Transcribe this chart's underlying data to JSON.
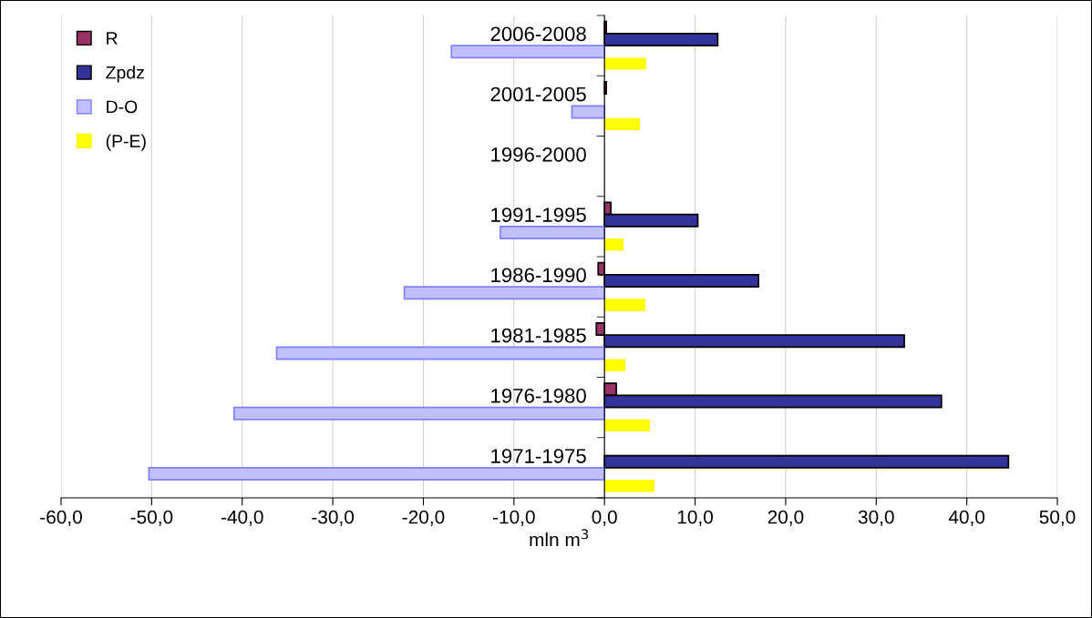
{
  "chart_data": {
    "type": "bar",
    "orientation": "horizontal",
    "xlabel": "mln m$^{3}$",
    "categories": [
      "2006-2008",
      "2001-2005",
      "1996-2000",
      "1991-1995",
      "1986-1990",
      "1981-1985",
      "1976-1980",
      "1971-1975"
    ],
    "series": [
      {
        "name": "R",
        "color": "#993366",
        "values": [
          0.2,
          0.2,
          null,
          0.7,
          -0.7,
          -0.9,
          1.3,
          null
        ]
      },
      {
        "name": "Zpdz",
        "color": "#333399",
        "values": [
          12.5,
          null,
          null,
          10.3,
          17.0,
          33.1,
          37.2,
          44.6
        ]
      },
      {
        "name": "D-O",
        "color": "#c0c0ff",
        "values": [
          -16.9,
          -3.6,
          null,
          -11.5,
          -22.1,
          -36.2,
          -40.9,
          -50.3
        ]
      },
      {
        "name": "(P-E)",
        "color": "#ffff00",
        "values": [
          4.6,
          3.9,
          null,
          2.1,
          4.5,
          2.3,
          5.0,
          5.5
        ]
      }
    ],
    "xlim": [
      -60,
      50
    ],
    "xticks": [
      {
        "value": -60,
        "label": "-60,0"
      },
      {
        "value": -50,
        "label": "-50,0"
      },
      {
        "value": -40,
        "label": "-40,0"
      },
      {
        "value": -30,
        "label": "-30,0"
      },
      {
        "value": -20,
        "label": "-20,0"
      },
      {
        "value": -10,
        "label": "-10,0"
      },
      {
        "value": 0,
        "label": "0,0"
      },
      {
        "value": 10,
        "label": "10,0"
      },
      {
        "value": 20,
        "label": "20,0"
      },
      {
        "value": 30,
        "label": "30,0"
      },
      {
        "value": 40,
        "label": "40,0"
      },
      {
        "value": 50,
        "label": "50,0"
      }
    ],
    "grid": "x",
    "legend": "top left"
  }
}
